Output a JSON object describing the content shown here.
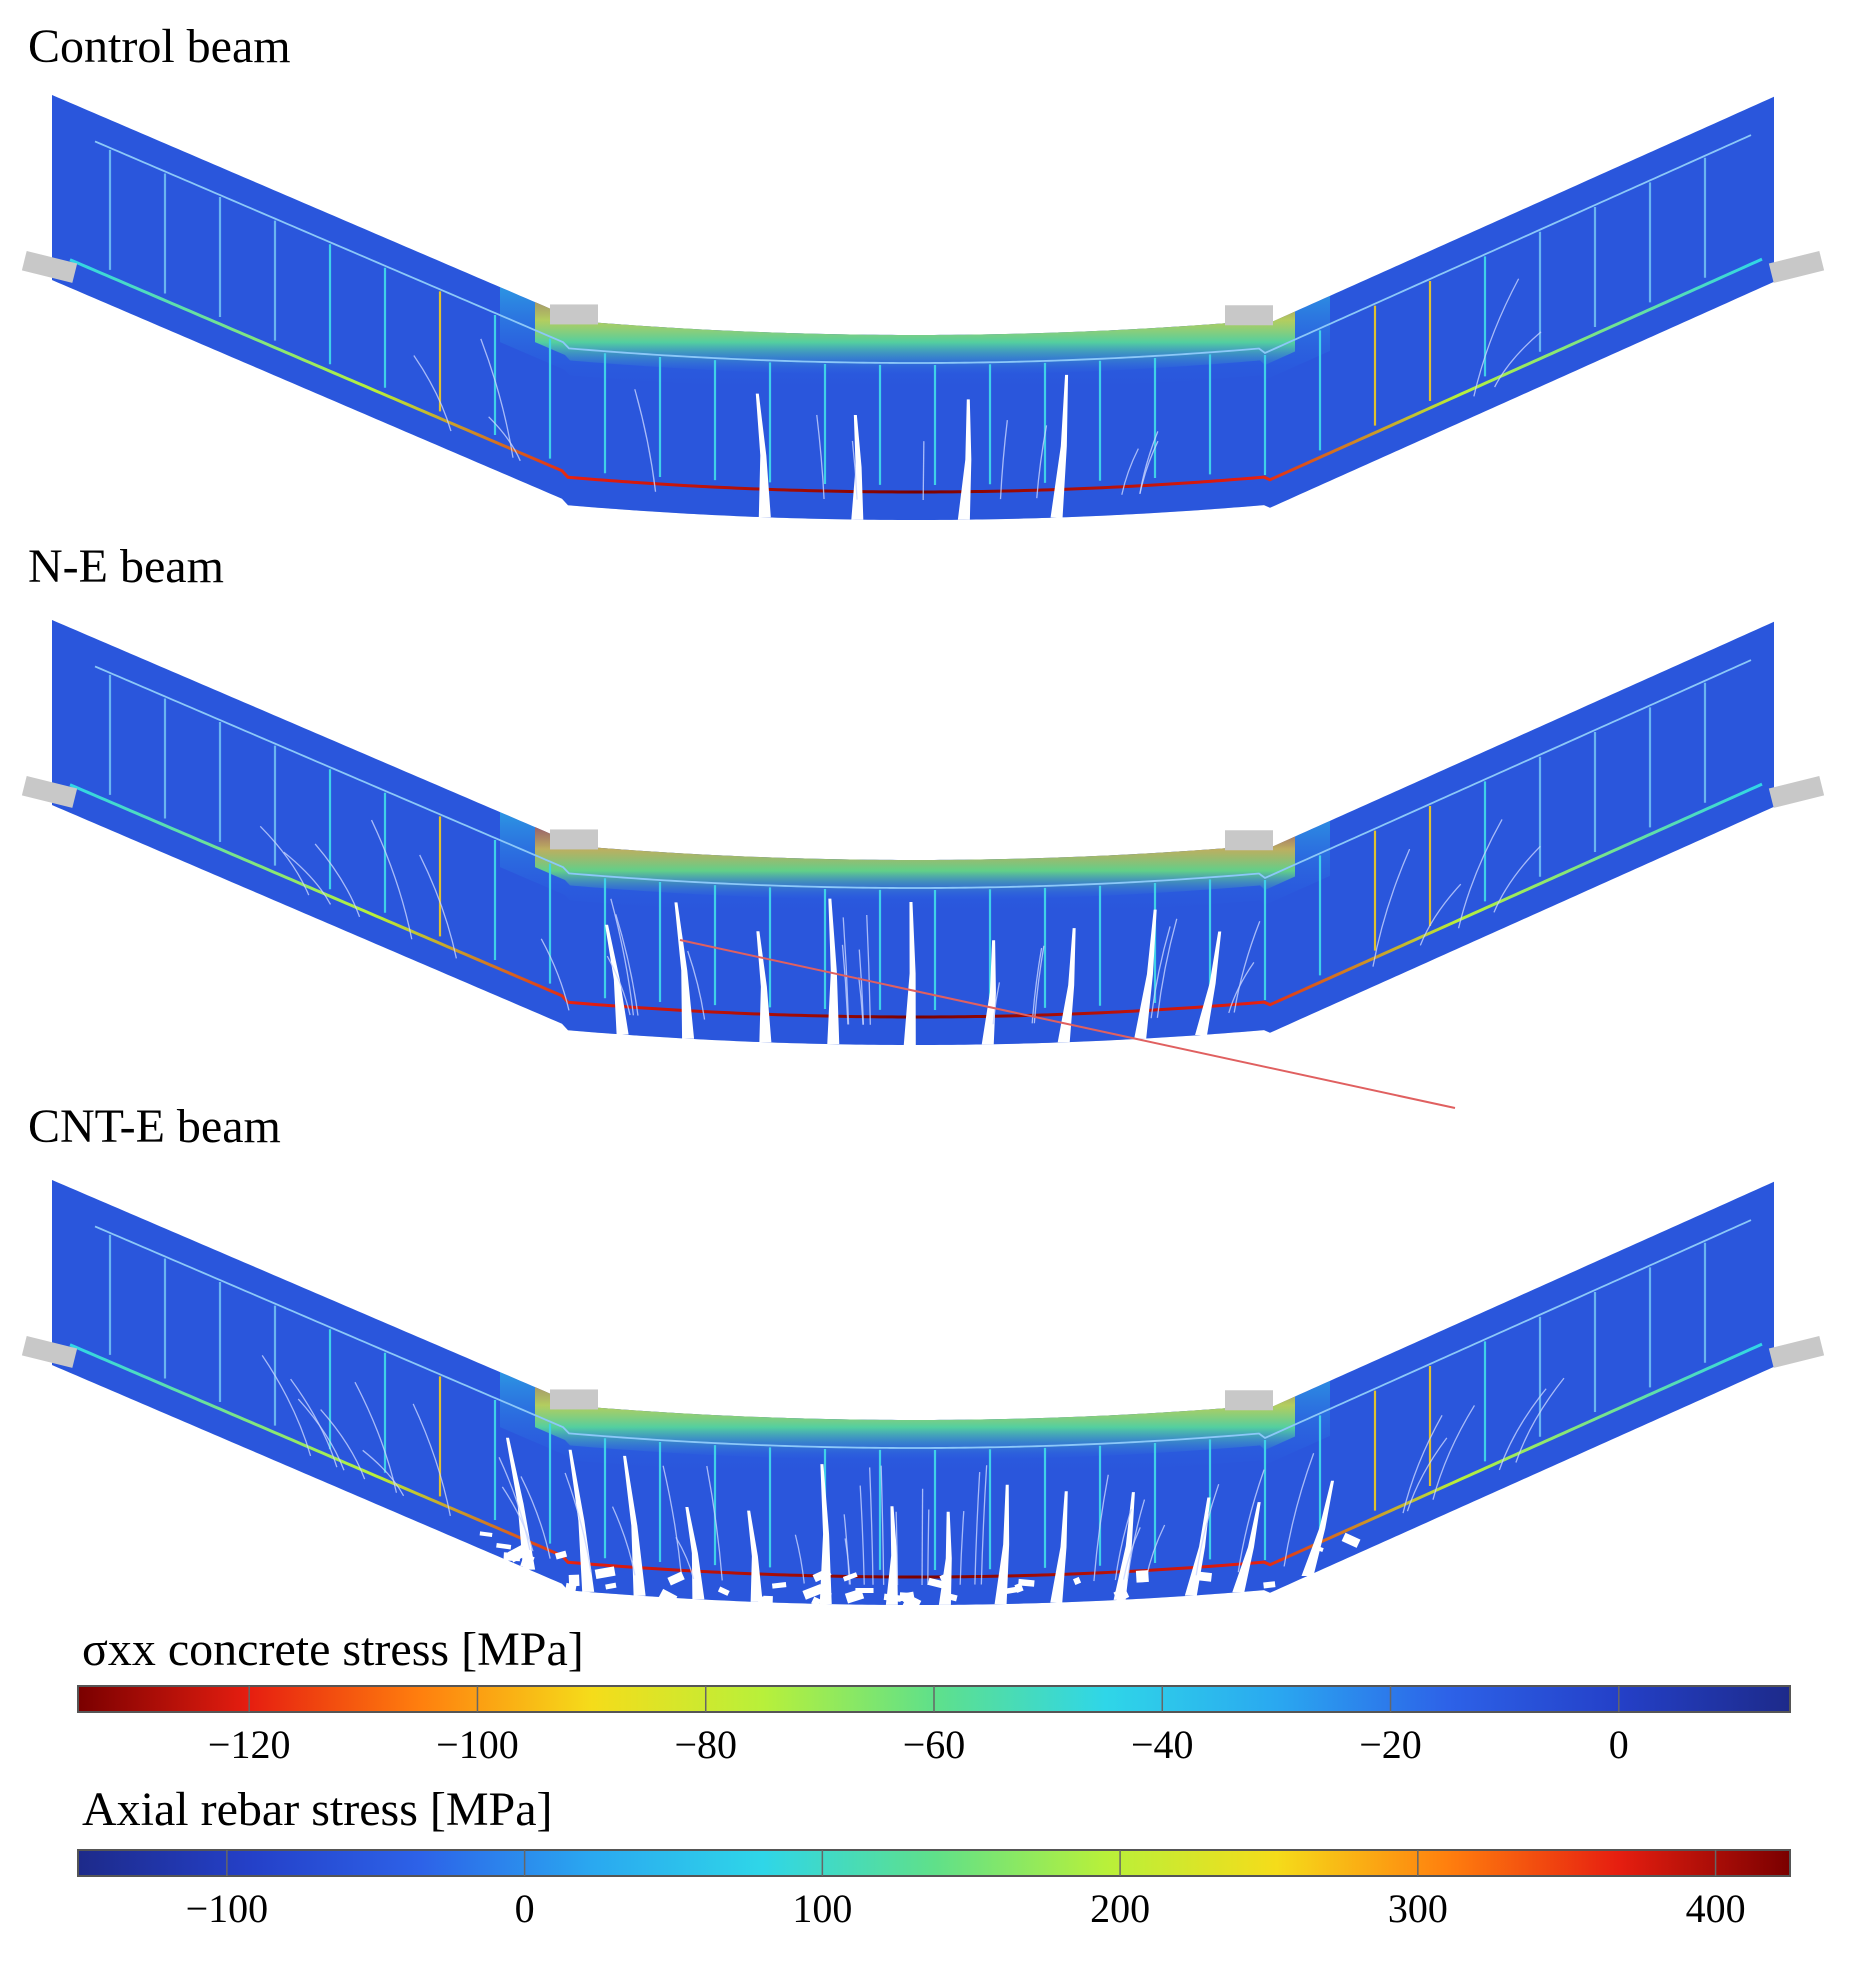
{
  "panels": [
    {
      "id": "control",
      "title": "Control beam",
      "damage": "low"
    },
    {
      "id": "ne",
      "title": "N-E beam",
      "damage": "medium"
    },
    {
      "id": "cnte",
      "title": "CNT-E beam",
      "damage": "high"
    }
  ],
  "colorbars": {
    "concrete": {
      "title": "σxx concrete stress [MPa]",
      "ticks": [
        "−120",
        "−100",
        "−80",
        "−60",
        "−40",
        "−20",
        "0"
      ],
      "tick_values": [
        -120,
        -100,
        -80,
        -60,
        -40,
        -20,
        0
      ],
      "range": [
        -135,
        15
      ],
      "colors": [
        "#7a0000",
        "#e61e10",
        "#ff7f0e",
        "#f5dc1a",
        "#b8f03a",
        "#5fe08a",
        "#2fd6e8",
        "#2aa8f0",
        "#2d62e8",
        "#2440c8",
        "#1d2a8a"
      ]
    },
    "rebar": {
      "title": "Axial rebar stress [MPa]",
      "ticks": [
        "−100",
        "0",
        "100",
        "200",
        "300",
        "400"
      ],
      "tick_values": [
        -100,
        0,
        100,
        200,
        300,
        400
      ],
      "range": [
        -150,
        425
      ],
      "colors": [
        "#1d2a8a",
        "#2440c8",
        "#2d62e8",
        "#2aa8f0",
        "#2fd6e8",
        "#5fe08a",
        "#b8f03a",
        "#f5dc1a",
        "#ff7f0e",
        "#e61e10",
        "#7a0000"
      ]
    }
  }
}
